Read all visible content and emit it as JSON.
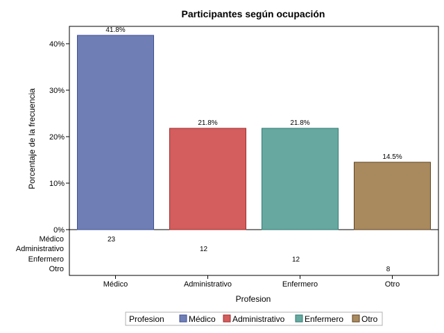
{
  "chart_data": {
    "type": "bar",
    "title": "Participantes según ocupación",
    "xlabel": "Profesion",
    "ylabel": "Porcentaje de la frecuencia",
    "categories": [
      "Médico",
      "Administrativo",
      "Enfermero",
      "Otro"
    ],
    "values": [
      41.8,
      21.8,
      21.8,
      14.5
    ],
    "value_labels": [
      "41.8%",
      "21.8%",
      "21.8%",
      "14.5%"
    ],
    "counts": [
      23,
      12,
      12,
      8
    ],
    "ylim": [
      0,
      44
    ],
    "yticks": [
      {
        "value": 0,
        "label": "0%"
      },
      {
        "value": 10,
        "label": "10%"
      },
      {
        "value": 20,
        "label": "20%"
      },
      {
        "value": 30,
        "label": "30%"
      },
      {
        "value": 40,
        "label": "40%"
      }
    ],
    "colors": [
      "#6f7fb6",
      "#d45d5d",
      "#67a9a1",
      "#a98a5e"
    ],
    "stroke_colors": [
      "#3f4f96",
      "#a02c2c",
      "#2f7a72",
      "#5e4321"
    ],
    "grid": false,
    "legend": {
      "title": "Profesion",
      "placement": "bottom",
      "entries": [
        "Médico",
        "Administrativo",
        "Enfermero",
        "Otro"
      ]
    }
  }
}
